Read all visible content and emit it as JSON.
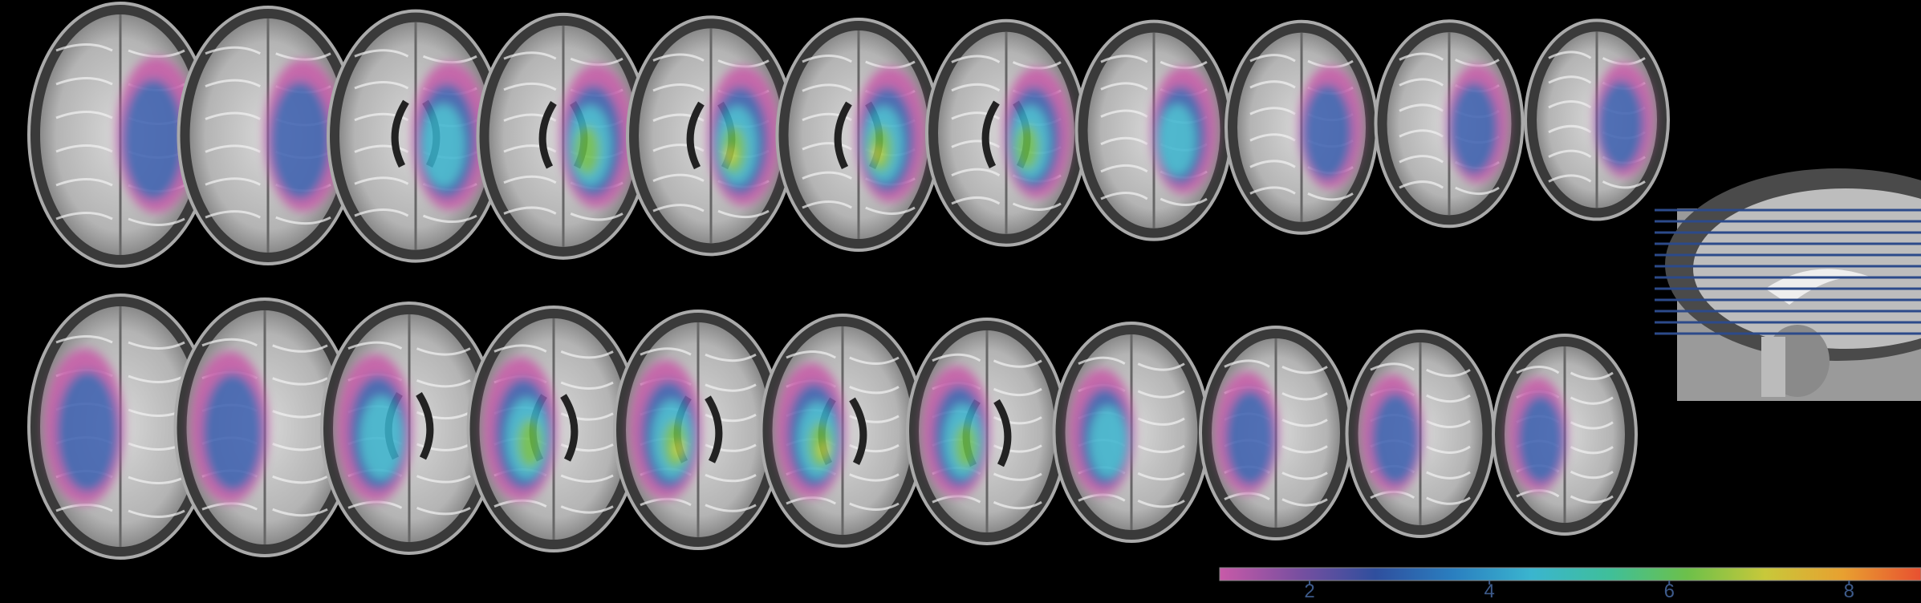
{
  "colorbar": {
    "lim": [
      1,
      8.8
    ],
    "ticks": [
      2,
      4,
      6,
      8
    ],
    "colors": [
      "#c85aa8",
      "#7a4fa0",
      "#2f4f9e",
      "#2a7fc0",
      "#3ab5cf",
      "#3fbf9a",
      "#6cc04a",
      "#c8c83a",
      "#e8a030",
      "#e85030"
    ]
  }
}
